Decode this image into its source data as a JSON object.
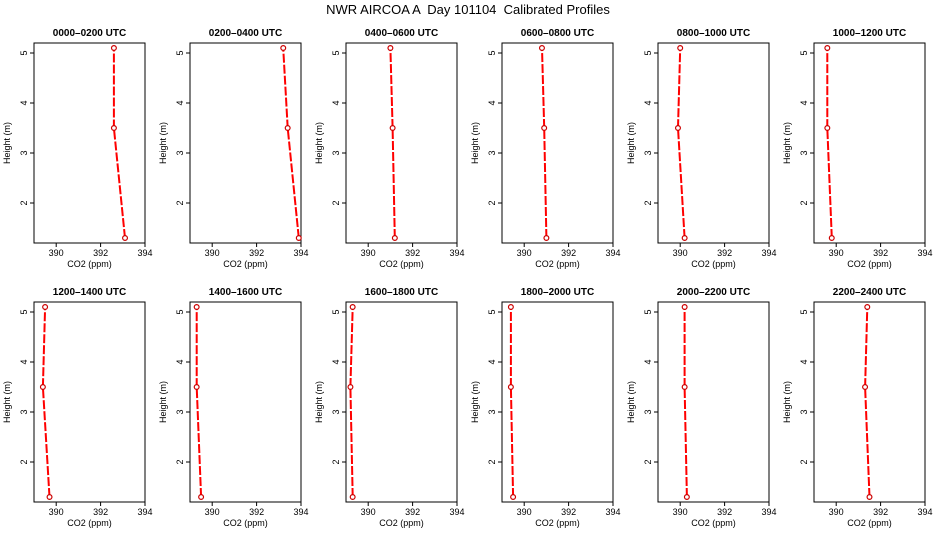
{
  "title": "NWR AIRCOA A  Day 101104  Calibrated Profiles",
  "colors": {
    "series": "#ff0000",
    "marker": "#cc0000",
    "axis": "#000000"
  },
  "chart_data": [
    {
      "type": "line",
      "title": "0000–0200 UTC",
      "xlabel": "CO2 (ppm)",
      "ylabel": "Height (m)",
      "xlim": [
        389,
        394
      ],
      "ylim": [
        1.2,
        5.2
      ],
      "xticks": [
        390,
        392,
        394
      ],
      "yticks": [
        2,
        3,
        4,
        5
      ],
      "x": [
        393.1,
        392.6,
        392.6
      ],
      "y": [
        1.3,
        3.5,
        5.1
      ]
    },
    {
      "type": "line",
      "title": "0200–0400 UTC",
      "xlabel": "CO2 (ppm)",
      "ylabel": "Height (m)",
      "xlim": [
        389,
        394
      ],
      "ylim": [
        1.2,
        5.2
      ],
      "xticks": [
        390,
        392,
        394
      ],
      "yticks": [
        2,
        3,
        4,
        5
      ],
      "x": [
        393.9,
        393.4,
        393.2
      ],
      "y": [
        1.3,
        3.5,
        5.1
      ]
    },
    {
      "type": "line",
      "title": "0400–0600 UTC",
      "xlabel": "CO2 (ppm)",
      "ylabel": "Height (m)",
      "xlim": [
        389,
        394
      ],
      "ylim": [
        1.2,
        5.2
      ],
      "xticks": [
        390,
        392,
        394
      ],
      "yticks": [
        2,
        3,
        4,
        5
      ],
      "x": [
        391.2,
        391.1,
        391.0
      ],
      "y": [
        1.3,
        3.5,
        5.1
      ]
    },
    {
      "type": "line",
      "title": "0600–0800 UTC",
      "xlabel": "CO2 (ppm)",
      "ylabel": "Height (m)",
      "xlim": [
        389,
        394
      ],
      "ylim": [
        1.2,
        5.2
      ],
      "xticks": [
        390,
        392,
        394
      ],
      "yticks": [
        2,
        3,
        4,
        5
      ],
      "x": [
        391.0,
        390.9,
        390.8
      ],
      "y": [
        1.3,
        3.5,
        5.1
      ]
    },
    {
      "type": "line",
      "title": "0800–1000 UTC",
      "xlabel": "CO2 (ppm)",
      "ylabel": "Height (m)",
      "xlim": [
        389,
        394
      ],
      "ylim": [
        1.2,
        5.2
      ],
      "xticks": [
        390,
        392,
        394
      ],
      "yticks": [
        2,
        3,
        4,
        5
      ],
      "x": [
        390.2,
        389.9,
        390.0
      ],
      "y": [
        1.3,
        3.5,
        5.1
      ]
    },
    {
      "type": "line",
      "title": "1000–1200 UTC",
      "xlabel": "CO2 (ppm)",
      "ylabel": "Height (m)",
      "xlim": [
        389,
        394
      ],
      "ylim": [
        1.2,
        5.2
      ],
      "xticks": [
        390,
        392,
        394
      ],
      "yticks": [
        2,
        3,
        4,
        5
      ],
      "x": [
        389.8,
        389.6,
        389.6
      ],
      "y": [
        1.3,
        3.5,
        5.1
      ]
    },
    {
      "type": "line",
      "title": "1200–1400 UTC",
      "xlabel": "CO2 (ppm)",
      "ylabel": "Height (m)",
      "xlim": [
        389,
        394
      ],
      "ylim": [
        1.2,
        5.2
      ],
      "xticks": [
        390,
        392,
        394
      ],
      "yticks": [
        2,
        3,
        4,
        5
      ],
      "x": [
        389.7,
        389.4,
        389.5
      ],
      "y": [
        1.3,
        3.5,
        5.1
      ]
    },
    {
      "type": "line",
      "title": "1400–1600 UTC",
      "xlabel": "CO2 (ppm)",
      "ylabel": "Height (m)",
      "xlim": [
        389,
        394
      ],
      "ylim": [
        1.2,
        5.2
      ],
      "xticks": [
        390,
        392,
        394
      ],
      "yticks": [
        2,
        3,
        4,
        5
      ],
      "x": [
        389.5,
        389.3,
        389.3
      ],
      "y": [
        1.3,
        3.5,
        5.1
      ]
    },
    {
      "type": "line",
      "title": "1600–1800 UTC",
      "xlabel": "CO2 (ppm)",
      "ylabel": "Height (m)",
      "xlim": [
        389,
        394
      ],
      "ylim": [
        1.2,
        5.2
      ],
      "xticks": [
        390,
        392,
        394
      ],
      "yticks": [
        2,
        3,
        4,
        5
      ],
      "x": [
        389.3,
        389.2,
        389.3
      ],
      "y": [
        1.3,
        3.5,
        5.1
      ]
    },
    {
      "type": "line",
      "title": "1800–2000 UTC",
      "xlabel": "CO2 (ppm)",
      "ylabel": "Height (m)",
      "xlim": [
        389,
        394
      ],
      "ylim": [
        1.2,
        5.2
      ],
      "xticks": [
        390,
        392,
        394
      ],
      "yticks": [
        2,
        3,
        4,
        5
      ],
      "x": [
        389.5,
        389.4,
        389.4
      ],
      "y": [
        1.3,
        3.5,
        5.1
      ]
    },
    {
      "type": "line",
      "title": "2000–2200 UTC",
      "xlabel": "CO2 (ppm)",
      "ylabel": "Height (m)",
      "xlim": [
        389,
        394
      ],
      "ylim": [
        1.2,
        5.2
      ],
      "xticks": [
        390,
        392,
        394
      ],
      "yticks": [
        2,
        3,
        4,
        5
      ],
      "x": [
        390.3,
        390.2,
        390.2
      ],
      "y": [
        1.3,
        3.5,
        5.1
      ]
    },
    {
      "type": "line",
      "title": "2200–2400 UTC",
      "xlabel": "CO2 (ppm)",
      "ylabel": "Height (m)",
      "xlim": [
        389,
        394
      ],
      "ylim": [
        1.2,
        5.2
      ],
      "xticks": [
        390,
        392,
        394
      ],
      "yticks": [
        2,
        3,
        4,
        5
      ],
      "x": [
        391.5,
        391.3,
        391.4
      ],
      "y": [
        1.3,
        3.5,
        5.1
      ]
    }
  ]
}
